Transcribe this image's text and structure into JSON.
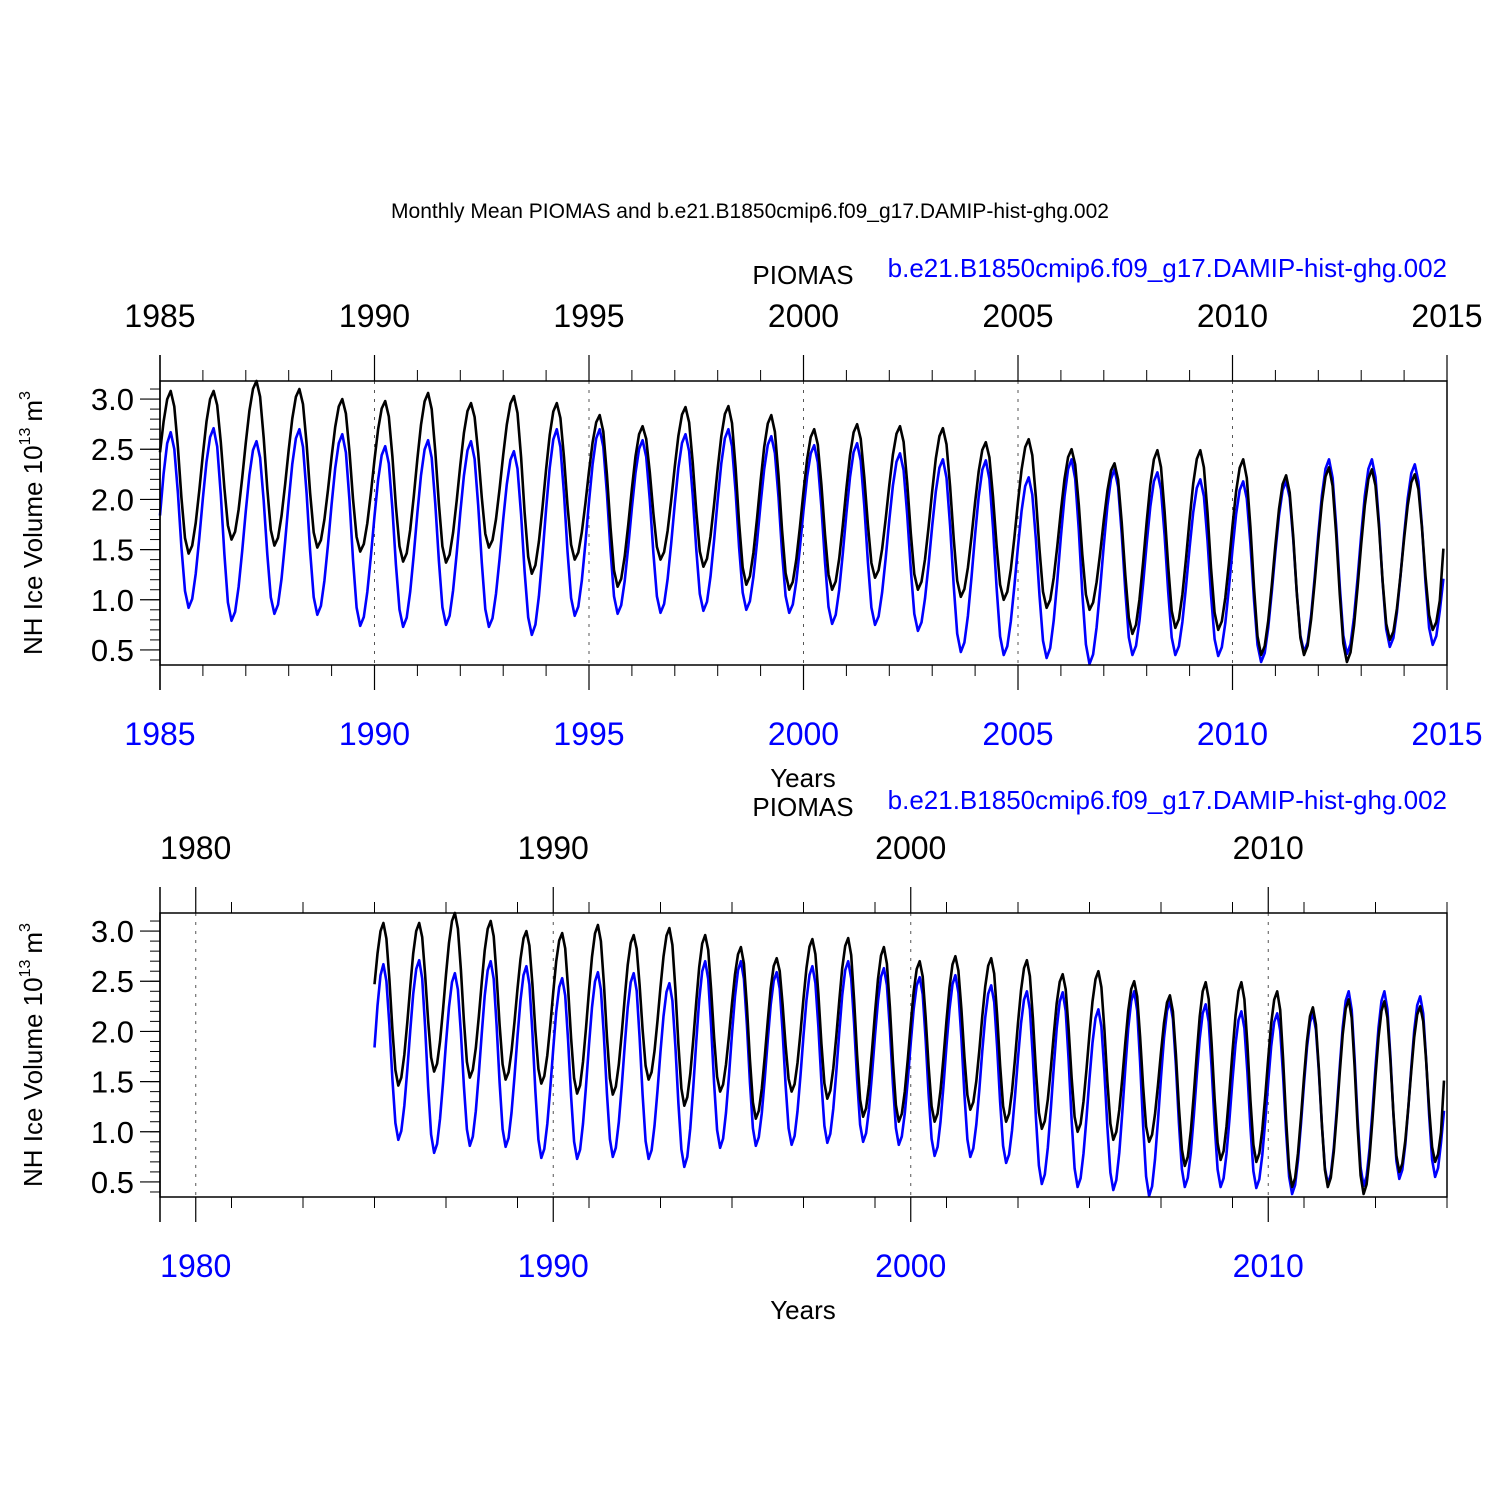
{
  "title": "Monthly Mean PIOMAS and b.e21.B1850cmip6.f09_g17.DAMIP-hist-ghg.002",
  "colors": {
    "piomas": "#000000",
    "model": "#0000ff",
    "axis": "#000000",
    "grid": "#555555"
  },
  "legend": {
    "piomas": "PIOMAS",
    "model": "b.e21.B1850cmip6.f09_g17.DAMIP-hist-ghg.002"
  },
  "chart_data": {
    "type": "line",
    "description_series_units": "NH Ice Volume 10^13 m^3",
    "start_year": 1985,
    "end_year": 2015,
    "series": [
      {
        "name": "PIOMAS",
        "color": "#000000",
        "annual_max": [
          3.08,
          3.08,
          3.18,
          3.1,
          3.0,
          2.98,
          3.06,
          2.96,
          3.03,
          2.96,
          2.84,
          2.73,
          2.92,
          2.93,
          2.84,
          2.7,
          2.75,
          2.73,
          2.71,
          2.57,
          2.6,
          2.5,
          2.36,
          2.49,
          2.49,
          2.4,
          2.24,
          2.32,
          2.3,
          2.25
        ],
        "annual_min": [
          1.46,
          1.6,
          1.54,
          1.52,
          1.48,
          1.38,
          1.37,
          1.52,
          1.26,
          1.4,
          1.13,
          1.4,
          1.33,
          1.15,
          1.1,
          1.1,
          1.22,
          1.1,
          1.03,
          1.0,
          0.92,
          0.9,
          0.66,
          0.72,
          0.7,
          0.45,
          0.45,
          0.38,
          0.6,
          0.7
        ],
        "first_value": 2.47,
        "last_value": 1.51
      },
      {
        "name": "b.e21.B1850cmip6.f09_g17.DAMIP-hist-ghg.002",
        "color": "#0000ff",
        "annual_max": [
          2.67,
          2.71,
          2.58,
          2.7,
          2.65,
          2.53,
          2.59,
          2.58,
          2.48,
          2.7,
          2.7,
          2.59,
          2.65,
          2.7,
          2.63,
          2.54,
          2.56,
          2.46,
          2.4,
          2.39,
          2.22,
          2.4,
          2.3,
          2.27,
          2.2,
          2.18,
          2.18,
          2.4,
          2.4,
          2.35
        ],
        "annual_min": [
          0.92,
          0.79,
          0.86,
          0.85,
          0.74,
          0.73,
          0.75,
          0.73,
          0.65,
          0.84,
          0.86,
          0.87,
          0.89,
          0.9,
          0.87,
          0.76,
          0.75,
          0.69,
          0.48,
          0.45,
          0.42,
          0.36,
          0.45,
          0.45,
          0.44,
          0.38,
          0.48,
          0.46,
          0.53,
          0.55
        ],
        "first_value": 1.84,
        "last_value": 1.21
      }
    ],
    "panels": [
      {
        "id": "top",
        "xlim": [
          1985,
          2015
        ],
        "ylim": [
          0.35,
          3.18
        ],
        "top_ticks": [
          "1985",
          "1990",
          "1995",
          "2000",
          "2005",
          "2010",
          "2015"
        ],
        "bottom_ticks": [
          "1985",
          "1990",
          "1995",
          "2000",
          "2005",
          "2010",
          "2015"
        ],
        "y_ticks": [
          "0.5",
          "1.0",
          "1.5",
          "2.0",
          "2.5",
          "3.0"
        ],
        "ylabel": "NH Ice Volume 10",
        "ylabel_exp": "13",
        "ylabel_unit": "m",
        "ylabel_unit_exp": "3",
        "xlabel": "Years",
        "grid_years": [
          1990,
          1995,
          2000,
          2005,
          2010
        ]
      },
      {
        "id": "bottom",
        "xlim": [
          1979,
          2015
        ],
        "ylim": [
          0.35,
          3.18
        ],
        "top_ticks": [
          "1980",
          "1990",
          "2000",
          "2010"
        ],
        "bottom_ticks": [
          "1980",
          "1990",
          "2000",
          "2010"
        ],
        "y_ticks": [
          "0.5",
          "1.0",
          "1.5",
          "2.0",
          "2.5",
          "3.0"
        ],
        "ylabel": "NH Ice Volume 10",
        "ylabel_exp": "13",
        "ylabel_unit": "m",
        "ylabel_unit_exp": "3",
        "xlabel": "Years",
        "grid_years": [
          1980,
          1990,
          2000,
          2010
        ]
      }
    ]
  }
}
